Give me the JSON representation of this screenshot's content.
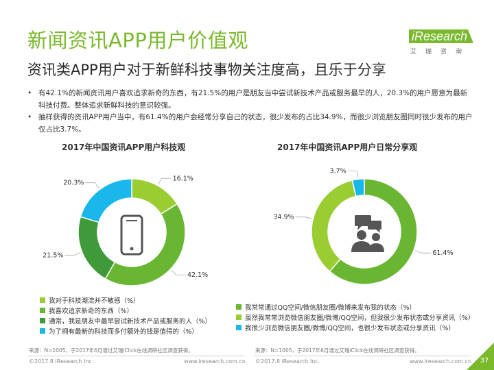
{
  "header": {
    "title": "新闻资讯APP用户价值观",
    "subtitle": "资讯类APP用户对于新鲜科技事物关注度高，且乐于分享"
  },
  "logo": {
    "word": "iResearch",
    "sub": "艾瑞咨询"
  },
  "bullets": [
    "有42.1%的新闻资讯用户喜欢追求新奇的东西，有21.5%的用户是朋友当中尝试新技术产品或服务最早的人，20.3%的用户愿意为最新科技付费。整体追求新鲜科技的意识较强。",
    "抽样获得的资讯APP用户当中，有61.4%的用户会经常分享自己的状态，很少发布的占比34.9%，而很少浏览朋友圈同时很少发布的用户仅占比3.7%。"
  ],
  "bullet_symbol": "•",
  "colors": {
    "green_light": "#9acd32",
    "green_mid": "#69b632",
    "green_dark": "#3f9a3a",
    "cyan": "#1ab7ea",
    "title_green": "#7ab92c"
  },
  "chart_data": [
    {
      "type": "pie",
      "donut": true,
      "title": "2017年中国资讯APP用户科技观",
      "center_icon": "smartphone-icon",
      "slices": [
        {
          "label": "我对于科技潮流并不敏感（%）",
          "value": 16.1,
          "value_label": "16.1%",
          "color": "#9acd32"
        },
        {
          "label": "我喜欢追求新奇的东西（%）",
          "value": 42.1,
          "value_label": "42.1%",
          "color": "#69b632"
        },
        {
          "label": "通常，我是朋友中最早尝试新技术产品或服务的人（%）",
          "value": 21.5,
          "value_label": "21.5%",
          "color": "#3f9a3a"
        },
        {
          "label": "为了拥有最新的科技而多付额外的钱是值得的（%）",
          "value": 20.3,
          "value_label": "20.3%",
          "color": "#1ab7ea"
        }
      ],
      "legend_position": "bottom"
    },
    {
      "type": "pie",
      "donut": true,
      "title": "2017年中国资讯APP用户日常分享观",
      "center_icon": "people-chat-icon",
      "slices": [
        {
          "label": "我常常通过QQ空间/微信朋友圈/微博来发布我的状态（%）",
          "value": 61.4,
          "value_label": "61.4%",
          "color": "#69b632"
        },
        {
          "label": "虽然我常常浏览微信朋友圈/微博/QQ空间，但我很少发布状态或分享资讯（%）",
          "value": 34.9,
          "value_label": "34.9%",
          "color": "#9acd32"
        },
        {
          "label": "我很少浏览微信朋友圈/微博/QQ空间，也很少发布状态或分享资讯（%）",
          "value": 3.7,
          "value_label": "3.7%",
          "color": "#1ab7ea"
        }
      ],
      "legend_position": "bottom"
    }
  ],
  "footer": {
    "source": "来源：N=1005，于2017年6月通过艾瑞iClick在线调研社区调查获得。",
    "copyright": "©2017.8 iResearch Inc.",
    "url": "www.iresearch.com.cn",
    "page": "37"
  }
}
